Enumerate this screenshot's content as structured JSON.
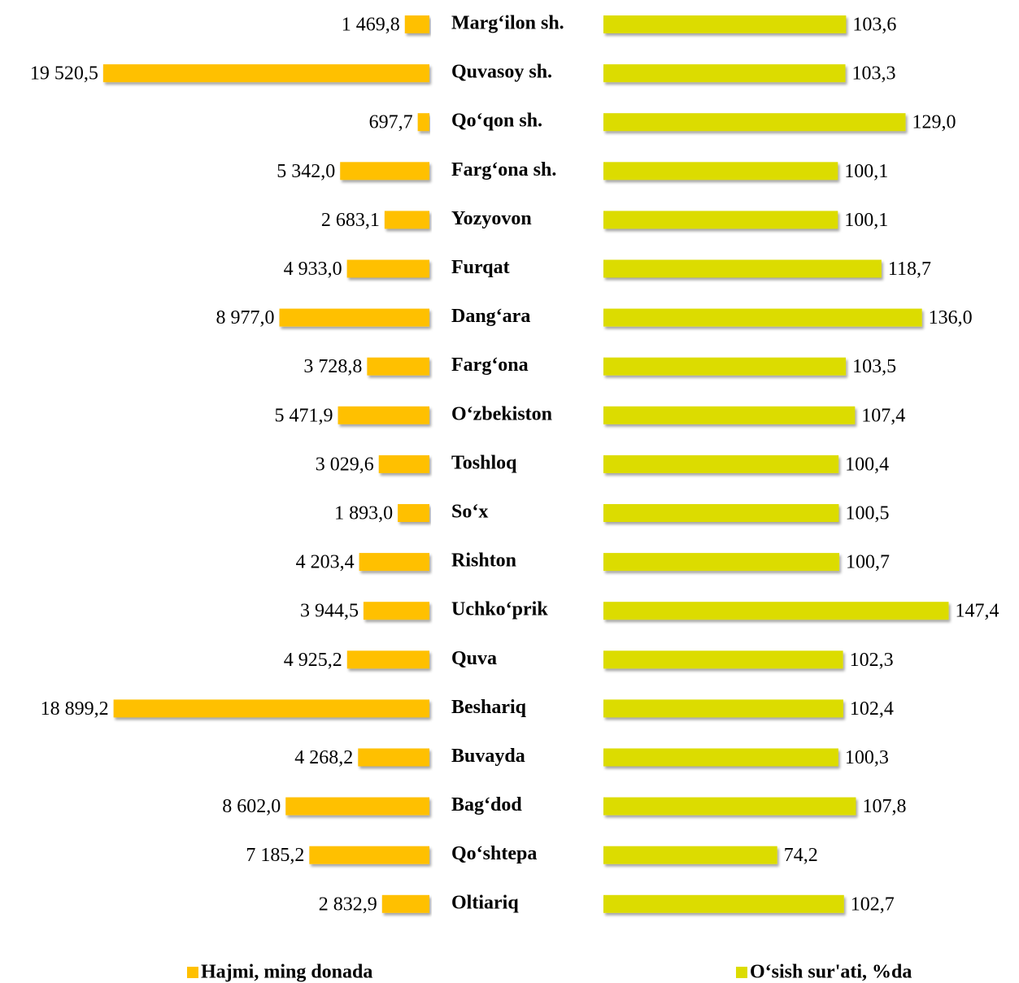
{
  "chart_data": {
    "type": "bar",
    "orientation": "horizontal",
    "categories": [
      "Marg‘ilon sh.",
      "Quvasoy sh.",
      "Qo‘qon sh.",
      "Farg‘ona sh.",
      "Yozyovon",
      "Furqat",
      "Dang‘ara",
      "Farg‘ona",
      "O‘zbekiston",
      "Toshloq",
      "So‘x",
      "Rishton",
      "Uchko‘prik",
      "Quva",
      "Beshariq",
      "Buvayda",
      "Bag‘dod",
      "Qo‘shtepa",
      "Oltiariq"
    ],
    "series": [
      {
        "name": "Hajmi, ming donada",
        "color": "#ffc000",
        "xlim": [
          0,
          20000
        ],
        "values": [
          1469.8,
          19520.5,
          697.7,
          5342.0,
          2683.1,
          4933.0,
          8977.0,
          3728.8,
          5471.9,
          3029.6,
          1893.0,
          4203.4,
          3944.5,
          4925.2,
          18899.2,
          4268.2,
          8602.0,
          7185.2,
          2832.9
        ],
        "value_labels": [
          "1 469,8",
          "19 520,5",
          "697,7",
          "5 342,0",
          "2 683,1",
          "4 933,0",
          "8 977,0",
          "3 728,8",
          "5 471,9",
          "3 029,6",
          "1 893,0",
          "4 203,4",
          "3 944,5",
          "4 925,2",
          "18 899,2",
          "4 268,2",
          "8 602,0",
          "7 185,2",
          "2 832,9"
        ]
      },
      {
        "name": "O‘sish sur'ati, %da",
        "color": "#dcdc00",
        "xlim": [
          0,
          150
        ],
        "values": [
          103.6,
          103.3,
          129.0,
          100.1,
          100.1,
          118.7,
          136.0,
          103.5,
          107.4,
          100.4,
          100.5,
          100.7,
          147.4,
          102.3,
          102.4,
          100.3,
          107.8,
          74.2,
          102.7
        ],
        "value_labels": [
          "103,6",
          "103,3",
          "129,0",
          "100,1",
          "100,1",
          "118,7",
          "136,0",
          "103,5",
          "107,4",
          "100,4",
          "100,5",
          "100,7",
          "147,4",
          "102,3",
          "102,4",
          "100,3",
          "107,8",
          "74,2",
          "102,7"
        ]
      }
    ]
  }
}
